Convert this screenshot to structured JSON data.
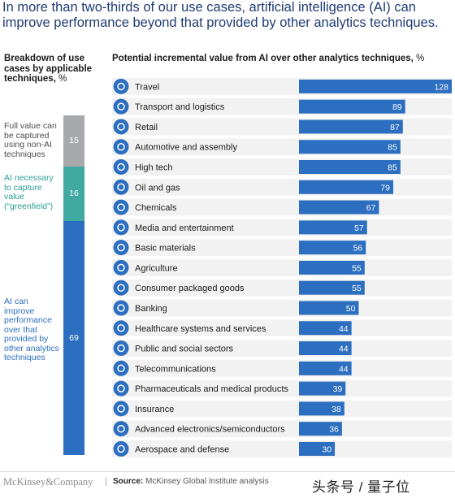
{
  "headline": "In more than two-thirds of our use cases, artificial intelligence (AI) can improve performance beyond that provided by other analytics techniques.",
  "left_panel": {
    "title": "Breakdown of use cases by applicable techniques,",
    "unit": "%",
    "segments": [
      {
        "label": "Full value can be captured using non-AI techniques",
        "value": 15,
        "color": "#a7a9ac",
        "label_color": "#4d4d4d"
      },
      {
        "label": "AI necessary to capture value (“greenfield”)",
        "value": 16,
        "color": "#3fa9a2",
        "label_color": "#2a9d95"
      },
      {
        "label": "AI can improve performance over that provided by other analytics techniques",
        "value": 69,
        "color": "#2c6ebf",
        "label_color": "#2c6ebf"
      }
    ]
  },
  "chart_data": {
    "type": "bar",
    "title": "Potential incremental value from AI over other analytics techniques,",
    "unit": "%",
    "bar_color": "#2c6ebf",
    "icon_color": "#2c6ebf",
    "row_shade": "#f2f2f2",
    "xlim": [
      0,
      128
    ],
    "categories": [
      "Travel",
      "Transport and logistics",
      "Retail",
      "Automotive and assembly",
      "High tech",
      "Oil and gas",
      "Chemicals",
      "Media and entertainment",
      "Basic materials",
      "Agriculture",
      "Consumer packaged goods",
      "Banking",
      "Healthcare systems and services",
      "Public and social sectors",
      "Telecommunications",
      "Pharmaceuticals and medical products",
      "Insurance",
      "Advanced electronics/semiconductors",
      "Aerospace and defense"
    ],
    "values": [
      128,
      89,
      87,
      85,
      85,
      79,
      67,
      57,
      56,
      55,
      55,
      50,
      44,
      44,
      44,
      39,
      38,
      36,
      30
    ],
    "icons": [
      "plane-icon",
      "truck-icon",
      "cart-icon",
      "car-icon",
      "robot-arm-icon",
      "oil-rig-icon",
      "flask-icon",
      "film-icon",
      "hardhat-icon",
      "cow-icon",
      "package-icon",
      "bank-icon",
      "medical-icon",
      "handshake-icon",
      "signal-tower-icon",
      "pill-icon",
      "umbrella-icon",
      "chip-icon",
      "rocket-icon"
    ]
  },
  "footer": {
    "brand": "McKinsey&Company",
    "separator": "|",
    "source_label": "Source:",
    "source_text": "McKinsey Global Institute analysis",
    "watermark": "头条号 / 量子位"
  }
}
